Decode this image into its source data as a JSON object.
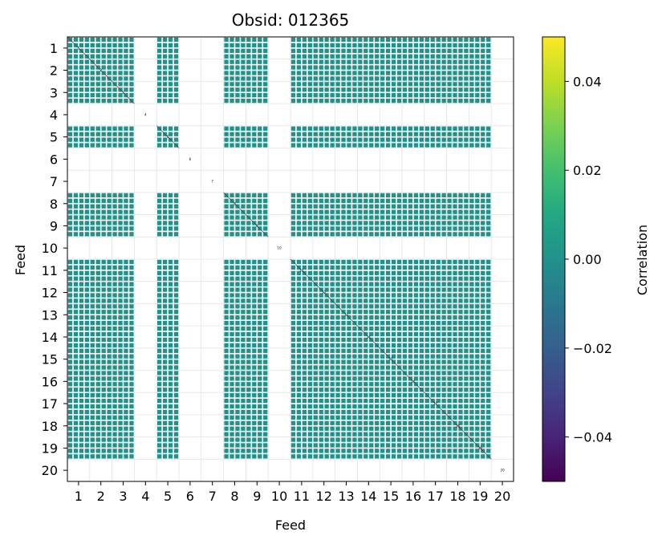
{
  "chart_data": {
    "type": "heatmap",
    "title": "Obsid: 012365",
    "xlabel": "Feed",
    "ylabel": "Feed",
    "x_ticks": [
      "1",
      "2",
      "3",
      "4",
      "5",
      "6",
      "7",
      "8",
      "9",
      "10",
      "11",
      "12",
      "13",
      "14",
      "15",
      "16",
      "17",
      "18",
      "19",
      "20"
    ],
    "y_ticks": [
      "1",
      "2",
      "3",
      "4",
      "5",
      "6",
      "7",
      "8",
      "9",
      "10",
      "11",
      "12",
      "13",
      "14",
      "15",
      "16",
      "17",
      "18",
      "19",
      "20"
    ],
    "grid": true,
    "colorbar": {
      "label": "Correlation",
      "range": [
        -0.05,
        0.05
      ],
      "ticks": [
        0.04,
        0.02,
        0.0,
        -0.02,
        -0.04
      ],
      "tick_labels": [
        "0.04",
        "0.02",
        "0.00",
        "−0.02",
        "−0.04"
      ],
      "colormap": "viridis"
    },
    "cell_value": 0.0,
    "cell_color": "#21918c",
    "active_feeds": [
      1,
      2,
      3,
      5,
      8,
      9,
      11,
      12,
      13,
      14,
      15,
      16,
      17,
      18,
      19
    ],
    "inactive_feeds": [
      4,
      6,
      7,
      10,
      20
    ],
    "sub_blocks_per_feed": 4,
    "diagonal_labels": [
      "1",
      "2",
      "3",
      "4",
      "5",
      "6",
      "7",
      "8",
      "9",
      "10",
      "11",
      "12",
      "13",
      "14",
      "15",
      "16",
      "17",
      "18",
      "19",
      "20"
    ]
  }
}
